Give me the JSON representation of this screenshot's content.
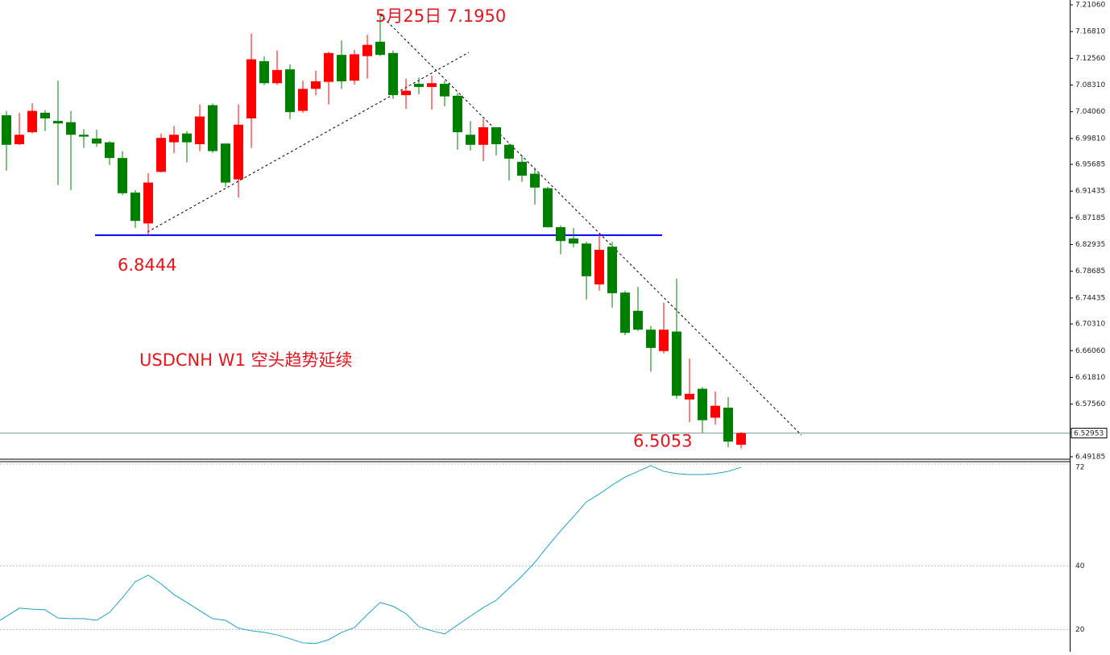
{
  "chart_data": [
    {
      "type": "candlestick",
      "open": [
        7.035,
        6.989,
        7.008,
        7.039,
        7.026,
        7.024,
        7.004,
        6.998,
        6.992,
        6.967,
        6.912,
        6.863,
        6.945,
        6.992,
        7.006,
        6.989,
        7.051,
        6.99,
        6.933,
        7.03,
        7.121,
        7.086,
        7.108,
        7.042,
        7.077,
        7.088,
        7.131,
        7.09,
        7.129,
        7.152,
        7.134,
        7.067,
        7.085,
        7.08,
        7.085,
        7.066,
        7.004,
        6.988,
        7.016,
        6.988,
        6.961,
        6.942,
        6.919,
        6.857,
        6.839,
        6.831,
        6.766,
        6.826,
        6.753,
        6.724,
        6.694,
        6.66,
        6.691,
        6.583,
        6.6,
        6.554,
        6.57,
        6.511
      ],
      "high": [
        7.042,
        7.039,
        7.054,
        7.043,
        7.09,
        7.042,
        7.013,
        7.012,
        6.994,
        6.978,
        6.916,
        6.943,
        7.006,
        7.018,
        7.01,
        7.052,
        7.054,
        6.99,
        7.052,
        7.165,
        7.129,
        7.138,
        7.116,
        7.09,
        7.106,
        7.136,
        7.154,
        7.139,
        7.163,
        7.195,
        7.138,
        7.093,
        7.095,
        7.098,
        7.09,
        7.07,
        7.026,
        7.029,
        7.016,
        6.99,
        6.972,
        6.952,
        6.921,
        6.86,
        6.856,
        6.834,
        6.847,
        6.834,
        6.756,
        6.762,
        6.7,
        6.737,
        6.775,
        6.648,
        6.603,
        6.596,
        6.587,
        6.531
      ],
      "low": [
        6.947,
        6.988,
        7.006,
        7.01,
        6.924,
        6.916,
        6.983,
        6.985,
        6.956,
        6.908,
        6.856,
        6.8444,
        6.944,
        6.975,
        6.96,
        6.978,
        6.975,
        6.921,
        6.904,
        6.983,
        7.083,
        7.083,
        7.029,
        7.039,
        7.067,
        7.052,
        7.077,
        7.084,
        7.093,
        7.129,
        7.061,
        7.045,
        7.068,
        7.044,
        7.049,
        6.98,
        6.979,
        6.962,
        6.971,
        6.931,
        6.929,
        6.893,
        6.856,
        6.814,
        6.825,
        6.742,
        6.756,
        6.729,
        6.685,
        6.692,
        6.627,
        6.656,
        6.584,
        6.547,
        6.53,
        6.543,
        6.507,
        6.5053
      ],
      "close": [
        6.988,
        7.004,
        7.042,
        7.03,
        7.022,
        7.004,
        7.001,
        6.99,
        6.967,
        6.911,
        6.867,
        6.928,
        6.999,
        7.004,
        6.992,
        7.033,
        6.978,
        6.928,
        7.02,
        7.124,
        7.086,
        7.107,
        7.04,
        7.077,
        7.089,
        7.134,
        7.089,
        7.132,
        7.147,
        7.131,
        7.067,
        7.074,
        7.08,
        7.086,
        7.065,
        7.008,
        6.988,
        7.016,
        6.989,
        6.966,
        6.939,
        6.92,
        6.857,
        6.835,
        6.831,
        6.779,
        6.821,
        6.752,
        6.689,
        6.694,
        6.665,
        6.694,
        6.589,
        6.592,
        6.55,
        6.573,
        6.516,
        6.52953
      ],
      "up_color": "#ff0000",
      "down_color": "#008000",
      "ylim": [
        6.4867,
        7.2183
      ],
      "yticks": [
        {
          "value": 7.2106,
          "label": "7.21060"
        },
        {
          "value": 7.1681,
          "label": "7.16810"
        },
        {
          "value": 7.1256,
          "label": "7.12560"
        },
        {
          "value": 7.0831,
          "label": "7.08310"
        },
        {
          "value": 7.0406,
          "label": "7.04060"
        },
        {
          "value": 6.9981,
          "label": "6.99810"
        },
        {
          "value": 6.95685,
          "label": "6.95685"
        },
        {
          "value": 6.91435,
          "label": "6.91435"
        },
        {
          "value": 6.87185,
          "label": "6.87185"
        },
        {
          "value": 6.82935,
          "label": "6.82935"
        },
        {
          "value": 6.78685,
          "label": "6.78685"
        },
        {
          "value": 6.74435,
          "label": "6.74435"
        },
        {
          "value": 6.7031,
          "label": "6.70310"
        },
        {
          "value": 6.6606,
          "label": "6.66060"
        },
        {
          "value": 6.6181,
          "label": "6.61810"
        },
        {
          "value": 6.5756,
          "label": "6.57560"
        },
        {
          "value": 6.49185,
          "label": "6.49185"
        }
      ],
      "current_price": 6.52953,
      "support": 6.8444,
      "low_mark": 6.5053,
      "annotations": [
        "5月25日  7.1950",
        "USDCNH  W1  空头趋势延续"
      ]
    },
    {
      "type": "line",
      "values": [
        22.9,
        26.7,
        26.4,
        26.2,
        23.6,
        23.4,
        23.4,
        22.9,
        25.4,
        30.0,
        35.0,
        37.1,
        34.3,
        31.0,
        28.5,
        25.9,
        23.4,
        22.9,
        20.4,
        19.6,
        19.1,
        18.3,
        17.1,
        15.8,
        15.6,
        16.8,
        19.1,
        20.6,
        24.7,
        28.5,
        27.3,
        25.0,
        20.9,
        19.6,
        18.6,
        21.4,
        24.2,
        26.9,
        29.2,
        33.0,
        36.8,
        41.1,
        46.2,
        51.0,
        55.5,
        60.1,
        62.6,
        65.4,
        67.9,
        69.7,
        71.5,
        69.7,
        69.0,
        68.7,
        68.7,
        69.0,
        69.7,
        71.0
      ],
      "color": "#1ba5c4",
      "ylim": [
        13,
        72.5
      ],
      "yticks": [
        72,
        40,
        20
      ],
      "grid": true
    }
  ]
}
